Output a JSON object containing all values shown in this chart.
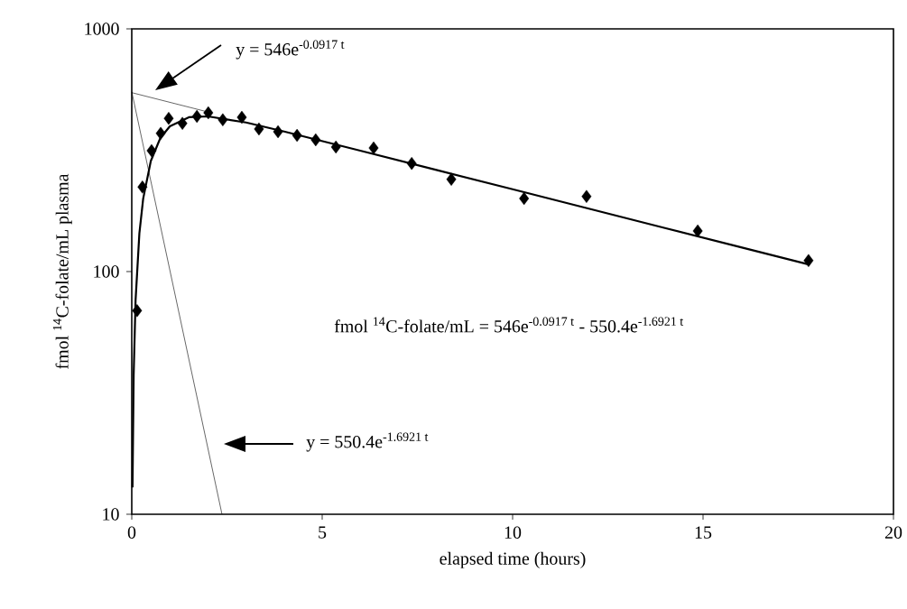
{
  "chart_data": {
    "type": "scatter",
    "xlabel": "elapsed time (hours)",
    "ylabel": "fmol $^{14}$C-folate/mL plasma",
    "xlim": [
      0,
      20
    ],
    "ylim": [
      10,
      1000
    ],
    "xticks": [
      0,
      5,
      10,
      15,
      20
    ],
    "yticks": [
      10,
      100,
      1000
    ],
    "log": "y",
    "series": [
      {
        "marker": "diamond",
        "color": "#000000",
        "x": [
          0.14,
          0.28,
          0.52,
          0.76,
          0.97,
          1.33,
          1.71,
          2.01,
          2.39,
          2.89,
          3.34,
          3.84,
          4.34,
          4.83,
          5.36,
          6.35,
          7.35,
          8.39,
          10.3,
          11.94,
          14.86,
          17.77
        ],
        "values": [
          69,
          223,
          315,
          371,
          428,
          408,
          436,
          451,
          422,
          432,
          387,
          377,
          364,
          349,
          326,
          323,
          279,
          240,
          200,
          204,
          147,
          111
        ]
      },
      {
        "type": "line",
        "marker": "none",
        "color": "#000000",
        "x": [
          0.02,
          0.05,
          0.1,
          0.2,
          0.3,
          0.5,
          0.75,
          1,
          1.5,
          2,
          3,
          4,
          6,
          8,
          10,
          12,
          14,
          16,
          17.8
        ],
        "values": [
          12.9,
          37.7,
          76.2,
          143.7,
          199.9,
          285.3,
          355,
          396.9,
          432.4,
          435.9,
          411.3,
          377.8,
          315,
          262.2,
          218.3,
          181.7,
          151.2,
          125.9,
          106.7
        ]
      },
      {
        "type": "line",
        "marker": "none",
        "color": "#000000",
        "x": [
          0,
          2
        ],
        "values": [
          546,
          454.6
        ]
      },
      {
        "type": "line",
        "marker": "none",
        "color": "#000000",
        "x": [
          0,
          2.369
        ],
        "values": [
          550.4,
          10
        ]
      }
    ],
    "annotations": [
      "y = 546e$^{-0.0917 t}$",
      "y = 550.4e$^{-1.6921 t}$",
      "fmol $^{14}$C-folate/mL =  546e$^{-0.0917 t}$ - 550.4e$^{-1.6921 t}$"
    ]
  }
}
